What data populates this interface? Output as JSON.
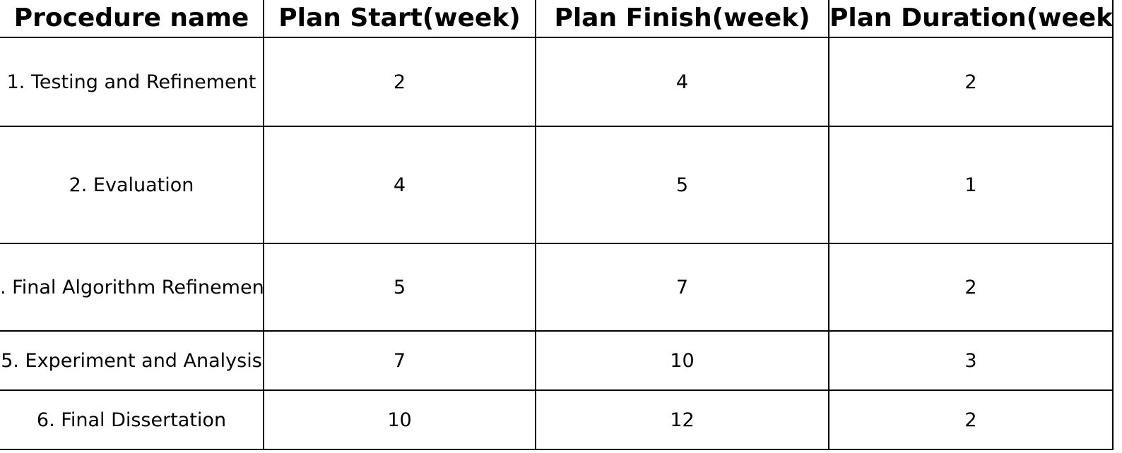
{
  "table": {
    "headers": [
      "Procedure name",
      "Plan Start(week)",
      "Plan Finish(week)",
      "Plan Duration(week)"
    ],
    "rows": [
      {
        "procedure": "1. Testing and Refinement",
        "start": "2",
        "finish": "4",
        "duration": "2"
      },
      {
        "procedure": "2. Evaluation",
        "start": "4",
        "finish": "5",
        "duration": "1"
      },
      {
        "procedure": ". Final Algorithm Refinemen",
        "start": "5",
        "finish": "7",
        "duration": "2"
      },
      {
        "procedure": "5. Experiment and Analysis",
        "start": "7",
        "finish": "10",
        "duration": "3"
      },
      {
        "procedure": "6. Final Dissertation",
        "start": "10",
        "finish": "12",
        "duration": "2"
      }
    ]
  }
}
